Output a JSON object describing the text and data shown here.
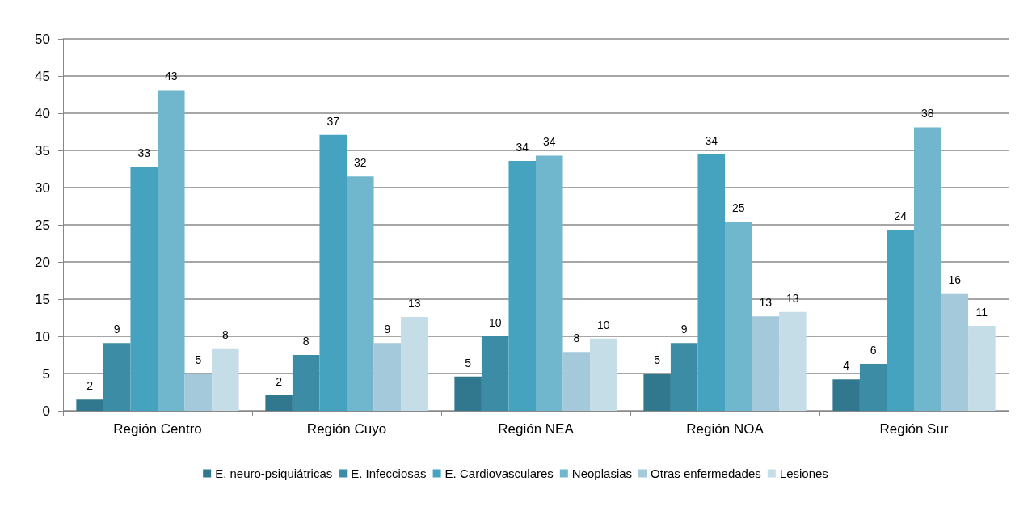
{
  "chart_data": {
    "type": "bar",
    "categories": [
      "Región Centro",
      "Región Cuyo",
      "Región NEA",
      "Región NOA",
      "Región Sur"
    ],
    "series": [
      {
        "name": "E. neuro-psiquiátricas",
        "color": "#31788f",
        "values": [
          1.5,
          2.1,
          4.6,
          5.0,
          4.2
        ],
        "value_labels": [
          "2",
          "2",
          "5",
          "5",
          "4"
        ]
      },
      {
        "name": "E. Infecciosas",
        "color": "#3b8ca4",
        "values": [
          9.1,
          7.5,
          10.0,
          9.1,
          6.3
        ],
        "value_labels": [
          "9",
          "8",
          "10",
          "9",
          "6"
        ]
      },
      {
        "name": "E. Cardiovasculares",
        "color": "#46a3bf",
        "values": [
          32.8,
          37.1,
          33.6,
          34.5,
          24.3
        ],
        "value_labels": [
          "33",
          "37",
          "34",
          "34",
          "24"
        ]
      },
      {
        "name": "Neoplasias",
        "color": "#70b7cd",
        "values": [
          43.1,
          31.5,
          34.3,
          25.4,
          38.1
        ],
        "value_labels": [
          "43",
          "32",
          "34",
          "25",
          "38"
        ]
      },
      {
        "name": "Otras enfermedades",
        "color": "#a4c9da",
        "values": [
          5.0,
          9.1,
          7.9,
          12.7,
          15.8
        ],
        "value_labels": [
          "5",
          "9",
          "8",
          "13",
          "16"
        ]
      },
      {
        "name": "Lesiones",
        "color": "#c4dde7",
        "values": [
          8.4,
          12.6,
          9.7,
          13.3,
          11.4
        ],
        "value_labels": [
          "8",
          "13",
          "10",
          "13",
          "11"
        ]
      }
    ],
    "ylim": [
      0,
      50
    ],
    "yticks": [
      0,
      5,
      10,
      15,
      20,
      25,
      30,
      35,
      40,
      45,
      50
    ],
    "grid": "y",
    "legend": "bottom"
  }
}
